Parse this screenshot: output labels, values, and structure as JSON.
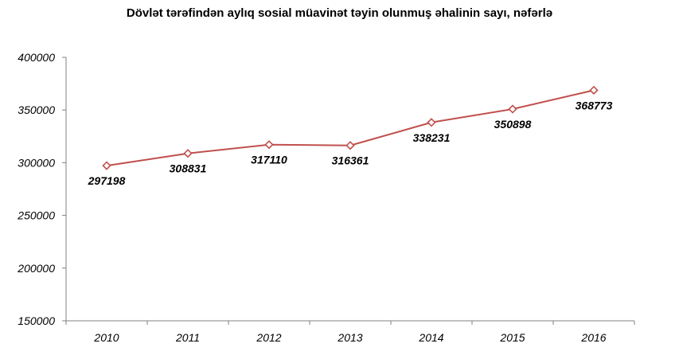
{
  "chart_data": {
    "type": "line",
    "title": "Dövlət tərəfindən aylıq sosial müavinət təyin olunmuş əhalinin sayı, nəfərlə",
    "xlabel": "",
    "ylabel": "",
    "categories": [
      "2010",
      "2011",
      "2012",
      "2013",
      "2014",
      "2015",
      "2016"
    ],
    "series": [
      {
        "values": [
          297198,
          308831,
          317110,
          316361,
          338231,
          350898,
          368773
        ],
        "color": "#c0504d"
      }
    ],
    "data_labels": [
      "297198",
      "308831",
      "317110",
      "316361",
      "338231",
      "350898",
      "368773"
    ],
    "ylim": [
      150000,
      400000
    ],
    "yticks": [
      "150000",
      "200000",
      "250000",
      "300000",
      "350000",
      "400000"
    ],
    "grid": false,
    "legend": "none"
  }
}
